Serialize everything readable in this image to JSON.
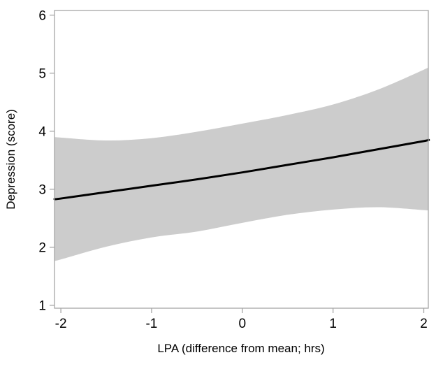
{
  "figure": {
    "background_color": "#ffffff",
    "frame_color": "#a6a6a6",
    "tick_color": "#a6a6a6",
    "text_color": "#000000"
  },
  "chart_data": {
    "type": "line",
    "title": "",
    "xlabel": "LPA (difference from mean; hrs)",
    "ylabel": "Depression (score)",
    "xlim": [
      -2.07,
      2.05
    ],
    "ylim": [
      0.95,
      6.08
    ],
    "x_ticks": [
      "-2",
      "-1",
      "0",
      "1",
      "2"
    ],
    "x_tick_values": [
      -2,
      -1,
      0,
      1,
      2
    ],
    "y_ticks": [
      "1",
      "2",
      "3",
      "4",
      "5",
      "6"
    ],
    "y_tick_values": [
      1,
      2,
      3,
      4,
      5,
      6
    ],
    "grid": false,
    "legend": false,
    "series": [
      {
        "name": "predicted-fit-line",
        "color": "#000000",
        "stroke_width": 3,
        "x": [
          -2.07,
          -2.0,
          -1.5,
          -1.0,
          -0.5,
          0.0,
          0.5,
          1.0,
          1.5,
          2.0,
          2.05
        ],
        "y": [
          2.83,
          2.84,
          2.95,
          3.06,
          3.17,
          3.29,
          3.42,
          3.55,
          3.69,
          3.83,
          3.85
        ]
      }
    ],
    "band": {
      "name": "confidence-band",
      "color": "#cccccc",
      "x": [
        -2.07,
        -2.0,
        -1.5,
        -1.0,
        -0.5,
        0.0,
        0.5,
        1.0,
        1.5,
        2.0,
        2.05
      ],
      "upper": [
        3.9,
        3.89,
        3.84,
        3.88,
        3.99,
        4.13,
        4.28,
        4.46,
        4.72,
        5.06,
        5.1
      ],
      "lower": [
        1.77,
        1.79,
        2.01,
        2.17,
        2.27,
        2.42,
        2.56,
        2.65,
        2.69,
        2.64,
        2.63
      ]
    }
  }
}
